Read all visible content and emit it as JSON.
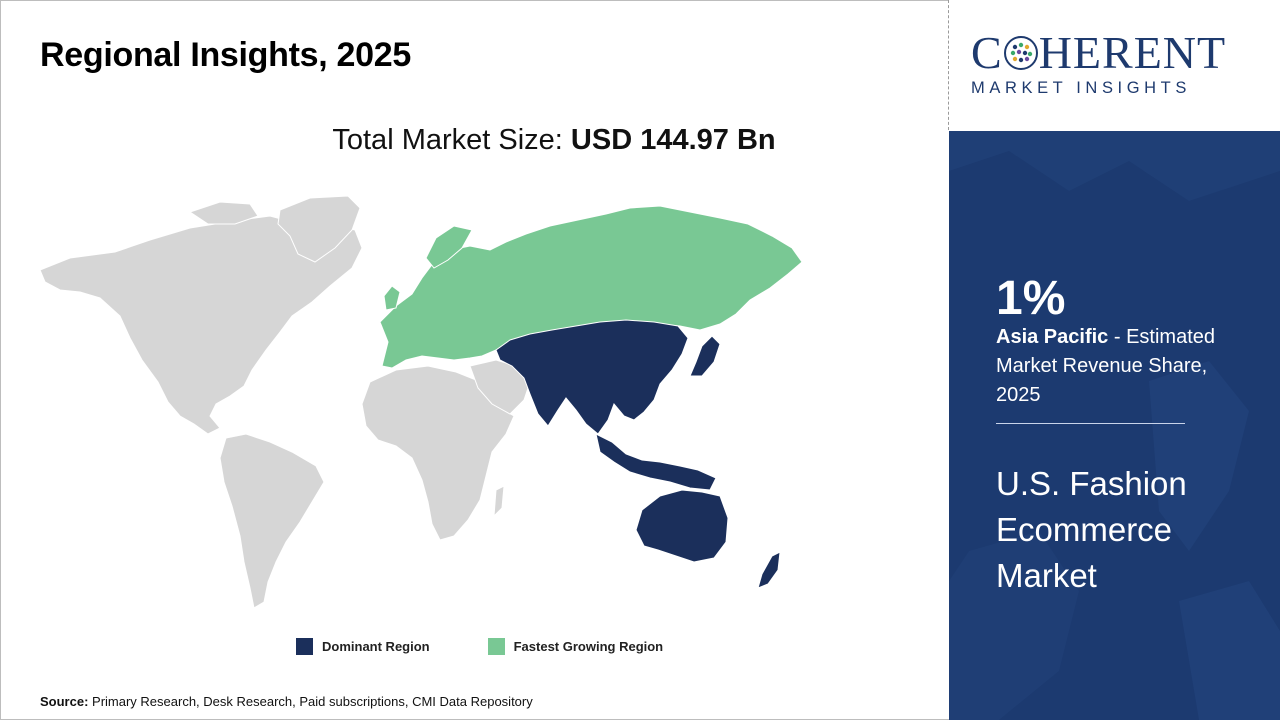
{
  "title": "Regional Insights, 2025",
  "market_size": {
    "label": "Total Market Size:",
    "value": "USD 144.97 Bn"
  },
  "legend": [
    {
      "label": "Dominant Region",
      "color": "#1b2f5b"
    },
    {
      "label": "Fastest Growing Region",
      "color": "#79c894"
    }
  ],
  "map": {
    "base_color": "#d6d6d6",
    "dominant_region": "Asia Pacific",
    "fastest_growing_region": "Europe and Russia"
  },
  "source": {
    "label": "Source:",
    "text": "Primary Research, Desk Research, Paid subscriptions, CMI Data Repository"
  },
  "logo": {
    "main_prefix": "C",
    "main_suffix": "HERENT",
    "sub": "MARKET INSIGHTS",
    "color": "#1e3a6e"
  },
  "side": {
    "share_value": "1%",
    "region": "Asia Pacific",
    "share_text": " - Estimated Market Revenue Share, 2025",
    "market_name": "U.S. Fashion Ecommerce Market",
    "background": "#1c3a70"
  }
}
